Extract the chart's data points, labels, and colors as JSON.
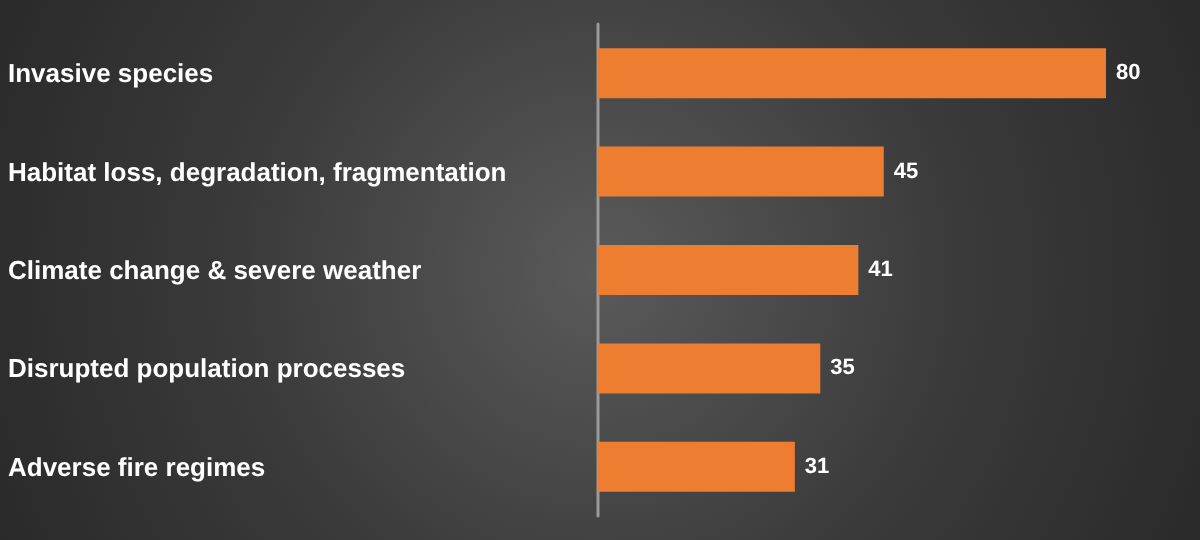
{
  "chart_data": {
    "type": "bar",
    "orientation": "horizontal",
    "categories": [
      "Invasive species",
      "Habitat loss, degradation, fragmentation",
      "Climate change & severe weather",
      "Disrupted population processes",
      "Adverse fire regimes"
    ],
    "values": [
      80,
      45,
      41,
      35,
      31
    ],
    "color": "#ed7d31",
    "data_labels": true
  }
}
